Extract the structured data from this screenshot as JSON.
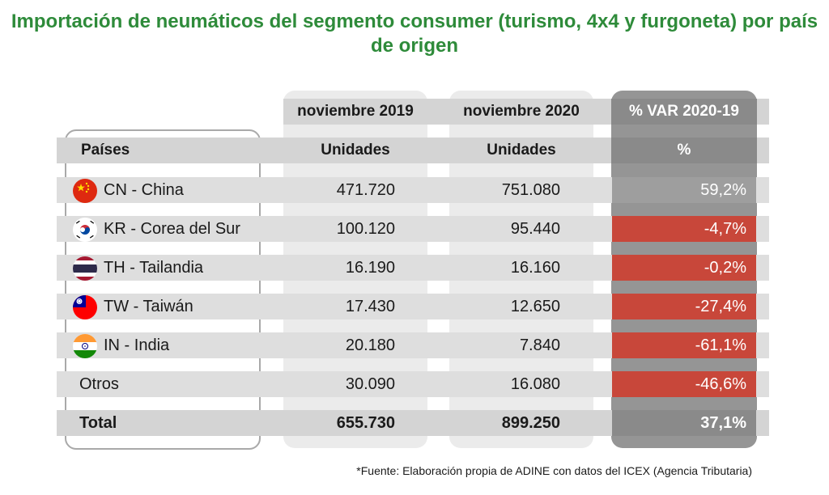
{
  "title": "Importación de neumáticos del segmento consumer (turismo, 4x4 y furgoneta) por país de origen",
  "headers": {
    "period_2019": "noviembre 2019",
    "period_2020": "noviembre 2020",
    "var": "% VAR 2020-19",
    "paises": "Países",
    "unidades_2019": "Unidades",
    "unidades_2020": "Unidades",
    "pct": "%"
  },
  "footnote": "*Fuente: Elaboración propia de ADINE con datos del ICEX (Agencia Tributaria)",
  "colors": {
    "title": "#2e8b3a",
    "negative": "#c8473a",
    "var_column": "#959595"
  },
  "chart_data": {
    "type": "table",
    "title": "Importación de neumáticos del segmento consumer (turismo, 4x4 y furgoneta) por país de origen",
    "columns": [
      "Países",
      "noviembre 2019 Unidades",
      "noviembre 2020 Unidades",
      "% VAR 2020-19"
    ],
    "rows": [
      {
        "pais": "CN - China",
        "flag": "china-flag-icon",
        "v2019": "471.720",
        "v2020": "751.080",
        "var": "59,2%",
        "negative": false
      },
      {
        "pais": "KR - Corea del Sur",
        "flag": "south-korea-flag-icon",
        "v2019": "100.120",
        "v2020": "95.440",
        "var": "-4,7%",
        "negative": true
      },
      {
        "pais": "TH - Tailandia",
        "flag": "thailand-flag-icon",
        "v2019": "16.190",
        "v2020": "16.160",
        "var": "-0,2%",
        "negative": true
      },
      {
        "pais": "TW - Taiwán",
        "flag": "taiwan-flag-icon",
        "v2019": "17.430",
        "v2020": "12.650",
        "var": "-27,4%",
        "negative": true
      },
      {
        "pais": "IN - India",
        "flag": "india-flag-icon",
        "v2019": "20.180",
        "v2020": "7.840",
        "var": "-61,1%",
        "negative": true
      },
      {
        "pais": "Otros",
        "flag": "",
        "v2019": "30.090",
        "v2020": "16.080",
        "var": "-46,6%",
        "negative": true
      }
    ],
    "total": {
      "pais": "Total",
      "v2019": "655.730",
      "v2020": "899.250",
      "var": "37,1%"
    }
  }
}
